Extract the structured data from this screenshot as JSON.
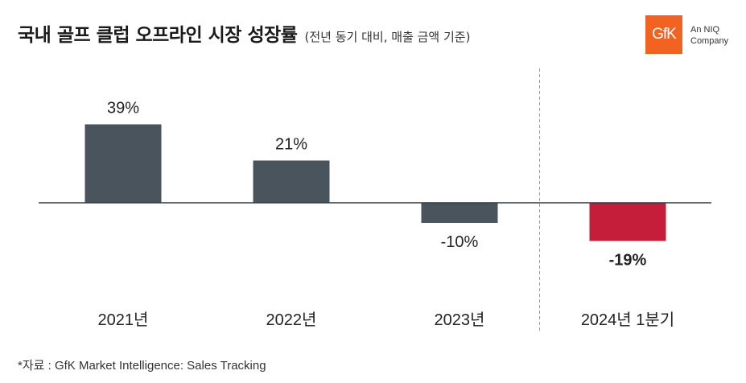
{
  "header": {
    "title": "국내 골프 클럽 오프라인 시장 성장률",
    "subtitle": "(전년 동기 대비, 매출 금액 기준)"
  },
  "logo": {
    "mark": "GfK",
    "tagline_1": "An NIQ",
    "tagline_2": "Company",
    "color": "#f26322"
  },
  "footer": {
    "source": "*자료 : GfK Market Intelligence: Sales Tracking"
  },
  "chart_data": {
    "type": "bar",
    "categories": [
      "2021년",
      "2022년",
      "2023년",
      "2024년 1분기"
    ],
    "values": [
      39,
      21,
      -10,
      -19
    ],
    "value_labels": [
      "39%",
      "21%",
      "-10%",
      "-19%"
    ],
    "ylim": [
      -30,
      55
    ],
    "grid": false,
    "colors": {
      "default": "#4a545c",
      "highlight": "#c41e3a",
      "axis": "#2f3a40",
      "divider": "#a0a0a0"
    },
    "highlight_index": 3,
    "divider_before_index": 3
  }
}
